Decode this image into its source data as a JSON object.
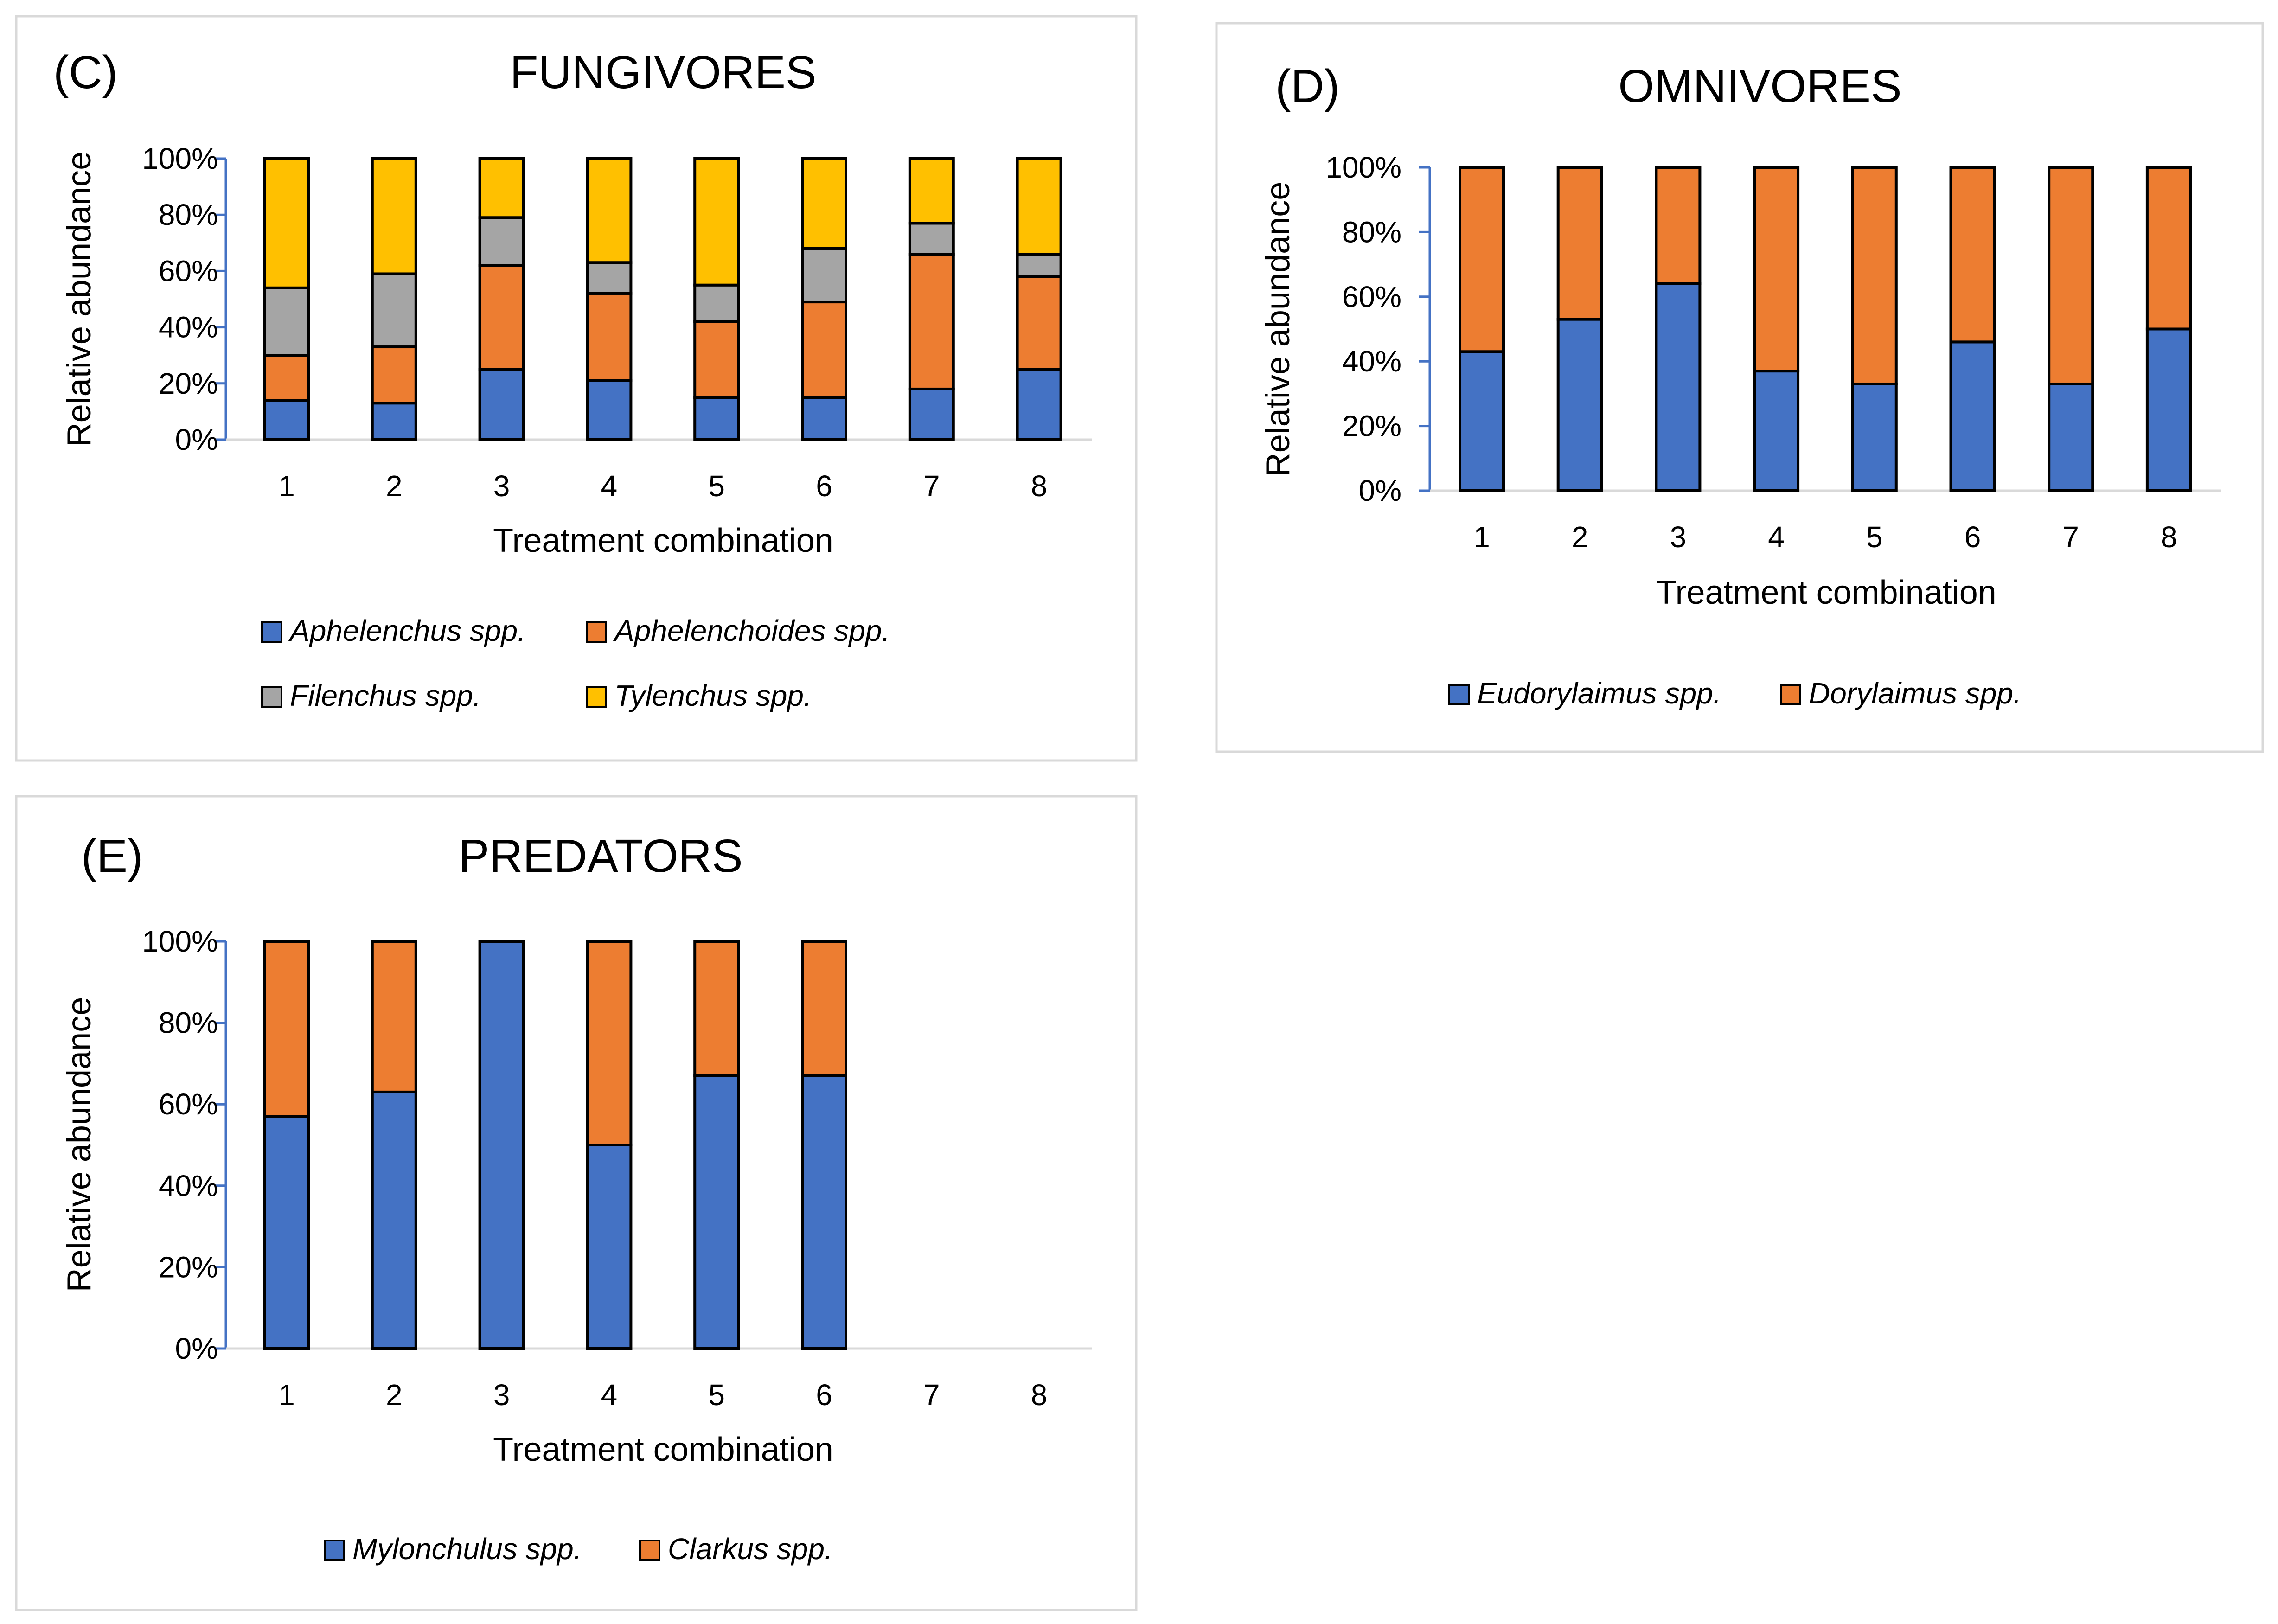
{
  "chart_data": [
    {
      "type": "bar",
      "stacked": "percent",
      "panel": "(C)",
      "title": "FUNGIVORES",
      "xlabel": "Treatment combination",
      "ylabel": "Relative abundance",
      "categories": [
        "1",
        "2",
        "3",
        "4",
        "5",
        "6",
        "7",
        "8"
      ],
      "yticks": [
        "0%",
        "20%",
        "40%",
        "60%",
        "80%",
        "100%"
      ],
      "ylim": [
        0,
        100
      ],
      "series": [
        {
          "name": "Aphelenchus spp.",
          "color": "#4472c4",
          "values": [
            14,
            13,
            25,
            21,
            15,
            15,
            18,
            25
          ]
        },
        {
          "name": "Aphelenchoides spp.",
          "color": "#ed7d31",
          "values": [
            16,
            20,
            37,
            31,
            27,
            34,
            48,
            33
          ]
        },
        {
          "name": "Filenchus spp.",
          "color": "#a5a5a5",
          "values": [
            24,
            26,
            17,
            11,
            13,
            19,
            11,
            8
          ]
        },
        {
          "name": "Tylenchus spp.",
          "color": "#ffc000",
          "values": [
            46,
            41,
            21,
            37,
            45,
            32,
            23,
            34
          ]
        }
      ]
    },
    {
      "type": "bar",
      "stacked": "percent",
      "panel": "(D)",
      "title": "OMNIVORES",
      "xlabel": "Treatment combination",
      "ylabel": "Relative abundance",
      "categories": [
        "1",
        "2",
        "3",
        "4",
        "5",
        "6",
        "7",
        "8"
      ],
      "yticks": [
        "0%",
        "20%",
        "40%",
        "60%",
        "80%",
        "100%"
      ],
      "ylim": [
        0,
        100
      ],
      "series": [
        {
          "name": "Eudorylaimus spp.",
          "color": "#4472c4",
          "values": [
            43,
            53,
            64,
            37,
            33,
            46,
            33,
            50
          ]
        },
        {
          "name": "Dorylaimus spp.",
          "color": "#ed7d31",
          "values": [
            57,
            47,
            36,
            63,
            67,
            54,
            67,
            50
          ]
        }
      ]
    },
    {
      "type": "bar",
      "stacked": "percent",
      "panel": "(E)",
      "title": "PREDATORS",
      "xlabel": "Treatment combination",
      "ylabel": "Relative abundance",
      "categories": [
        "1",
        "2",
        "3",
        "4",
        "5",
        "6",
        "7",
        "8"
      ],
      "yticks": [
        "0%",
        "20%",
        "40%",
        "60%",
        "80%",
        "100%"
      ],
      "ylim": [
        0,
        100
      ],
      "series": [
        {
          "name": "Mylonchulus spp.",
          "color": "#4472c4",
          "values": [
            57,
            63,
            100,
            50,
            67,
            67,
            0,
            0
          ]
        },
        {
          "name": "Clarkus spp.",
          "color": "#ed7d31",
          "values": [
            43,
            37,
            0,
            50,
            33,
            33,
            0,
            0
          ]
        }
      ]
    }
  ]
}
